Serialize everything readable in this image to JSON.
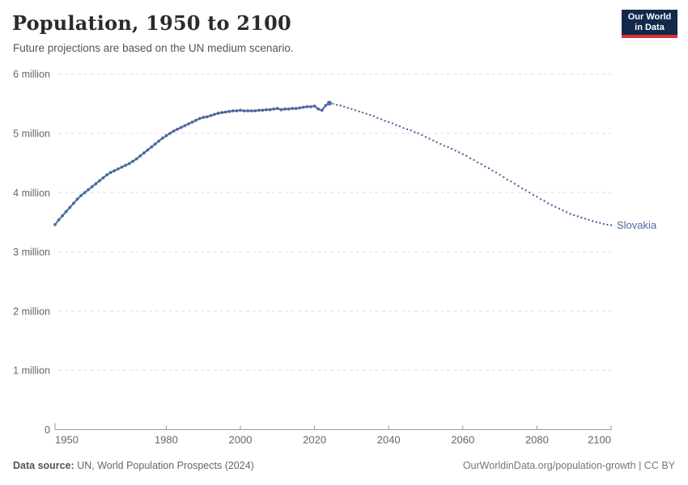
{
  "header": {
    "title": "Population, 1950 to 2100",
    "subtitle": "Future projections are based on the UN medium scenario.",
    "logo": {
      "line1": "Our World",
      "line2": "in Data"
    }
  },
  "footer": {
    "source_label": "Data source:",
    "source_rest": " UN, World Population Prospects (2024)",
    "attribution": "OurWorldinData.org/population-growth | CC BY"
  },
  "colors": {
    "line": "#4c6a9e",
    "end_label": "#4c6a9e",
    "grid": "#dddddd",
    "axis": "#999999",
    "tick_text": "#666666",
    "logo_bg": "#12294b",
    "logo_accent": "#dc2e32"
  },
  "chart_data": {
    "type": "line",
    "title": "Population, 1950 to 2100",
    "subtitle": "Future projections are based on the UN medium scenario.",
    "entity": "Slovakia",
    "end_label": "Slovakia",
    "unit": "million people",
    "xlim": [
      1950,
      2100
    ],
    "ylim_millions": [
      0,
      6
    ],
    "grid": "horizontal dashed",
    "legend_position": "end-of-line label",
    "x_axis": {
      "ticks": [
        1950,
        1980,
        2000,
        2020,
        2040,
        2060,
        2080,
        2100
      ]
    },
    "y_axis": {
      "ticks": [
        {
          "value": 0,
          "label": "0"
        },
        {
          "value": 1,
          "label": "1 million"
        },
        {
          "value": 2,
          "label": "2 million"
        },
        {
          "value": 3,
          "label": "3 million"
        },
        {
          "value": 4,
          "label": "4 million"
        },
        {
          "value": 5,
          "label": "5 million"
        },
        {
          "value": 6,
          "label": "6 million"
        }
      ]
    },
    "series": [
      {
        "name": "Slovakia",
        "segment": "historical estimates",
        "style": "solid_line_with_markers",
        "years": [
          1950,
          1951,
          1952,
          1953,
          1954,
          1955,
          1956,
          1957,
          1958,
          1959,
          1960,
          1961,
          1962,
          1963,
          1964,
          1965,
          1966,
          1967,
          1968,
          1969,
          1970,
          1971,
          1972,
          1973,
          1974,
          1975,
          1976,
          1977,
          1978,
          1979,
          1980,
          1981,
          1982,
          1983,
          1984,
          1985,
          1986,
          1987,
          1988,
          1989,
          1990,
          1991,
          1992,
          1993,
          1994,
          1995,
          1996,
          1997,
          1998,
          1999,
          2000,
          2001,
          2002,
          2003,
          2004,
          2005,
          2006,
          2007,
          2008,
          2009,
          2010,
          2011,
          2012,
          2013,
          2014,
          2015,
          2016,
          2017,
          2018,
          2019,
          2020,
          2021,
          2022,
          2023,
          2024
        ],
        "population_millions": [
          3.46,
          3.54,
          3.61,
          3.68,
          3.75,
          3.82,
          3.89,
          3.95,
          4.0,
          4.05,
          4.1,
          4.15,
          4.2,
          4.25,
          4.3,
          4.34,
          4.37,
          4.4,
          4.43,
          4.46,
          4.49,
          4.53,
          4.57,
          4.62,
          4.67,
          4.72,
          4.77,
          4.82,
          4.87,
          4.92,
          4.96,
          5.0,
          5.04,
          5.07,
          5.1,
          5.13,
          5.16,
          5.19,
          5.22,
          5.25,
          5.27,
          5.28,
          5.3,
          5.32,
          5.34,
          5.35,
          5.36,
          5.37,
          5.38,
          5.38,
          5.39,
          5.38,
          5.38,
          5.38,
          5.38,
          5.39,
          5.39,
          5.4,
          5.4,
          5.41,
          5.42,
          5.4,
          5.41,
          5.41,
          5.42,
          5.42,
          5.43,
          5.44,
          5.45,
          5.45,
          5.46,
          5.41,
          5.39,
          5.47,
          5.51
        ]
      },
      {
        "name": "Slovakia",
        "segment": "UN medium scenario projection",
        "style": "dotted",
        "years": [
          2025,
          2026,
          2027,
          2028,
          2029,
          2030,
          2031,
          2032,
          2033,
          2034,
          2035,
          2036,
          2037,
          2038,
          2039,
          2040,
          2041,
          2042,
          2043,
          2044,
          2045,
          2046,
          2047,
          2048,
          2049,
          2050,
          2051,
          2052,
          2053,
          2054,
          2055,
          2056,
          2057,
          2058,
          2059,
          2060,
          2061,
          2062,
          2063,
          2064,
          2065,
          2066,
          2067,
          2068,
          2069,
          2070,
          2071,
          2072,
          2073,
          2074,
          2075,
          2076,
          2077,
          2078,
          2079,
          2080,
          2081,
          2082,
          2083,
          2084,
          2085,
          2086,
          2087,
          2088,
          2089,
          2090,
          2091,
          2092,
          2093,
          2094,
          2095,
          2096,
          2097,
          2098,
          2099,
          2100
        ],
        "population_millions": [
          5.5,
          5.48,
          5.47,
          5.45,
          5.43,
          5.41,
          5.39,
          5.37,
          5.35,
          5.33,
          5.31,
          5.29,
          5.26,
          5.24,
          5.21,
          5.19,
          5.17,
          5.14,
          5.12,
          5.09,
          5.07,
          5.05,
          5.02,
          5.0,
          4.97,
          4.94,
          4.91,
          4.88,
          4.85,
          4.82,
          4.79,
          4.77,
          4.74,
          4.71,
          4.68,
          4.65,
          4.62,
          4.58,
          4.55,
          4.51,
          4.48,
          4.44,
          4.41,
          4.37,
          4.34,
          4.3,
          4.26,
          4.22,
          4.19,
          4.15,
          4.11,
          4.07,
          4.04,
          4.0,
          3.96,
          3.93,
          3.89,
          3.86,
          3.82,
          3.79,
          3.76,
          3.73,
          3.7,
          3.67,
          3.64,
          3.62,
          3.6,
          3.58,
          3.56,
          3.54,
          3.52,
          3.5,
          3.49,
          3.47,
          3.46,
          3.45
        ]
      }
    ]
  }
}
